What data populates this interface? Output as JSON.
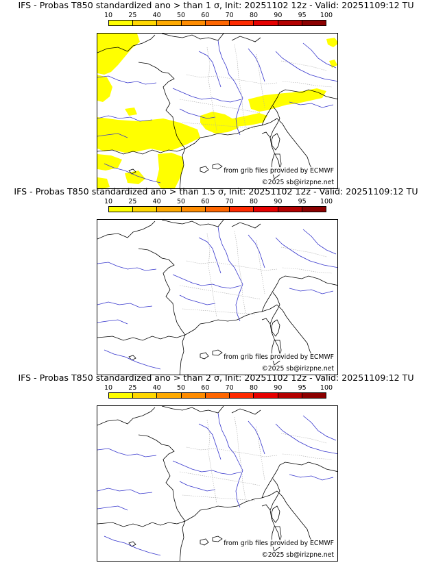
{
  "colorbar": {
    "ticks": [
      "10",
      "25",
      "40",
      "50",
      "60",
      "70",
      "80",
      "90",
      "95",
      "100"
    ],
    "colors": [
      "#ffff00",
      "#ffd700",
      "#ffaa00",
      "#ff8c00",
      "#ff6600",
      "#ff2a00",
      "#e60000",
      "#b30000",
      "#8b0000",
      "#4d0000"
    ]
  },
  "map_colors": {
    "coast": "#000000",
    "rivers": "#3333cc",
    "borders": "#aaaaaa",
    "probability": "#ffff00"
  },
  "panels": [
    {
      "title": "IFS - Probas T850  standardized ano > than 1 σ, Init: 20251102 12z - Valid: 20251109:12 TU",
      "source": "from grib files provided by ECMWF",
      "copyright": "©2025 sb@irizpne.net",
      "has_shading": true
    },
    {
      "title": "IFS - Probas T850  standardized ano > than 1.5 σ, Init: 20251102 12z - Valid: 20251109:12 TU",
      "source": "from grib files provided by ECMWF",
      "copyright": "©2025 sb@irizpne.net",
      "has_shading": false
    },
    {
      "title": "IFS - Probas T850  standardized ano > than 2 σ, Init: 20251102 12z - Valid: 20251109:12 TU",
      "source": "from grib files provided by ECMWF",
      "copyright": "©2025 sb@irizpne.net",
      "has_shading": false
    }
  ]
}
